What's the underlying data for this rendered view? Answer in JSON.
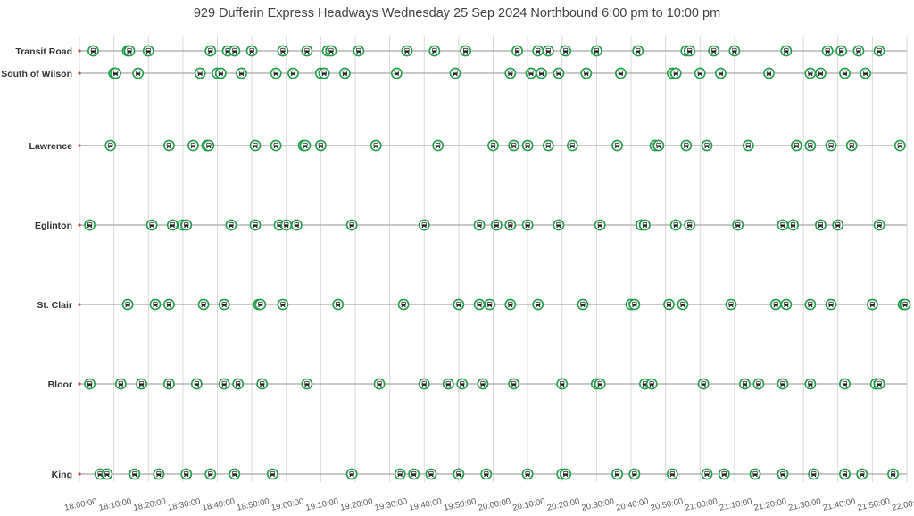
{
  "title": "929 Dufferin Express Headways Wednesday 25 Sep 2024 Northbound 6:00 pm to 10:00 pm",
  "colors": {
    "marker": "#1f9e48",
    "row_line": "#a6a6a6",
    "grid": "#d9d9d9",
    "origin_dot": "#c0504d"
  },
  "chart_data": {
    "type": "scatter",
    "title": "929 Dufferin Express Headways Wednesday 25 Sep 2024 Northbound 6:00 pm to 10:00 pm",
    "xlabel": "",
    "ylabel": "",
    "marker_icon": "bus-icon",
    "grid": "vertical",
    "xlim": [
      "18:00:00",
      "22:00:00"
    ],
    "x_ticks": [
      "18:00:00",
      "18:10:00",
      "18:20:00",
      "18:30:00",
      "18:40:00",
      "18:50:00",
      "19:00:00",
      "19:10:00",
      "19:20:00",
      "19:30:00",
      "19:40:00",
      "19:50:00",
      "20:00:00",
      "20:10:00",
      "20:20:00",
      "20:30:00",
      "20:40:00",
      "20:50:00",
      "21:00:00",
      "21:10:00",
      "21:20:00",
      "21:30:00",
      "21:40:00",
      "21:50:00",
      "22:00:00"
    ],
    "series": [
      {
        "name": "Transit Road",
        "times": [
          "18:04",
          "18:14",
          "18:14:30",
          "18:20",
          "18:38",
          "18:43",
          "18:45",
          "18:50",
          "18:59",
          "19:06",
          "19:12",
          "19:13",
          "19:21",
          "19:35",
          "19:43",
          "19:52",
          "20:07",
          "20:13",
          "20:16",
          "20:21",
          "20:30",
          "20:42",
          "20:56",
          "20:57",
          "21:04",
          "21:10",
          "21:25",
          "21:37",
          "21:41",
          "21:46",
          "21:52"
        ]
      },
      {
        "name": "South of Wilson",
        "times": [
          "18:10",
          "18:10:30",
          "18:17",
          "18:35",
          "18:40",
          "18:41",
          "18:47",
          "18:57",
          "19:02",
          "19:10",
          "19:11",
          "19:17",
          "19:32",
          "19:49",
          "20:05",
          "20:11",
          "20:14",
          "20:19",
          "20:27",
          "20:37",
          "20:52",
          "20:53",
          "21:00",
          "21:06",
          "21:20",
          "21:32",
          "21:35",
          "21:42",
          "21:48"
        ]
      },
      {
        "name": "Lawrence",
        "times": [
          "18:09",
          "18:26",
          "18:33",
          "18:37",
          "18:37:30",
          "18:51",
          "18:57",
          "19:05",
          "19:05:30",
          "19:10",
          "19:26",
          "19:44",
          "20:00",
          "20:06",
          "20:10",
          "20:16",
          "20:23",
          "20:36",
          "20:47",
          "20:48",
          "20:56",
          "21:02",
          "21:14",
          "21:28",
          "21:32",
          "21:38",
          "21:44",
          "21:58"
        ]
      },
      {
        "name": "Eglinton",
        "times": [
          "18:03",
          "18:21",
          "18:27",
          "18:30",
          "18:31",
          "18:44",
          "18:51",
          "18:58",
          "19:00",
          "19:03",
          "19:19",
          "19:40",
          "19:56",
          "20:01",
          "20:05",
          "20:10",
          "20:19",
          "20:31",
          "20:43",
          "20:44",
          "20:53",
          "20:57",
          "21:11",
          "21:24",
          "21:27",
          "21:35",
          "21:40",
          "21:52"
        ]
      },
      {
        "name": "St. Clair",
        "times": [
          "18:14",
          "18:22",
          "18:26",
          "18:36",
          "18:42",
          "18:52",
          "18:52:30",
          "18:59",
          "19:15",
          "19:34",
          "19:50",
          "19:56",
          "19:59",
          "20:05",
          "20:13",
          "20:26",
          "20:40",
          "20:41",
          "20:51",
          "20:55",
          "21:09",
          "21:22",
          "21:25",
          "21:32",
          "21:38",
          "21:50",
          "21:59",
          "21:59:30"
        ]
      },
      {
        "name": "Bloor",
        "times": [
          "18:03",
          "18:12",
          "18:18",
          "18:26",
          "18:34",
          "18:42",
          "18:46",
          "18:53",
          "19:06",
          "19:27",
          "19:40",
          "19:47",
          "19:51",
          "19:57",
          "20:06",
          "20:20",
          "20:30",
          "20:31",
          "20:44",
          "20:46",
          "21:01",
          "21:13",
          "21:17",
          "21:24",
          "21:32",
          "21:42",
          "21:51",
          "21:52"
        ]
      },
      {
        "name": "King",
        "times": [
          "18:06",
          "18:08",
          "18:16",
          "18:23",
          "18:31",
          "18:38",
          "18:45",
          "18:56",
          "19:19",
          "19:33",
          "19:37",
          "19:42",
          "19:50",
          "19:58",
          "20:10",
          "20:20",
          "20:21",
          "20:36",
          "20:41",
          "20:52",
          "21:02",
          "21:07",
          "21:16",
          "21:24",
          "21:33",
          "21:42",
          "21:47",
          "21:56"
        ]
      }
    ]
  }
}
